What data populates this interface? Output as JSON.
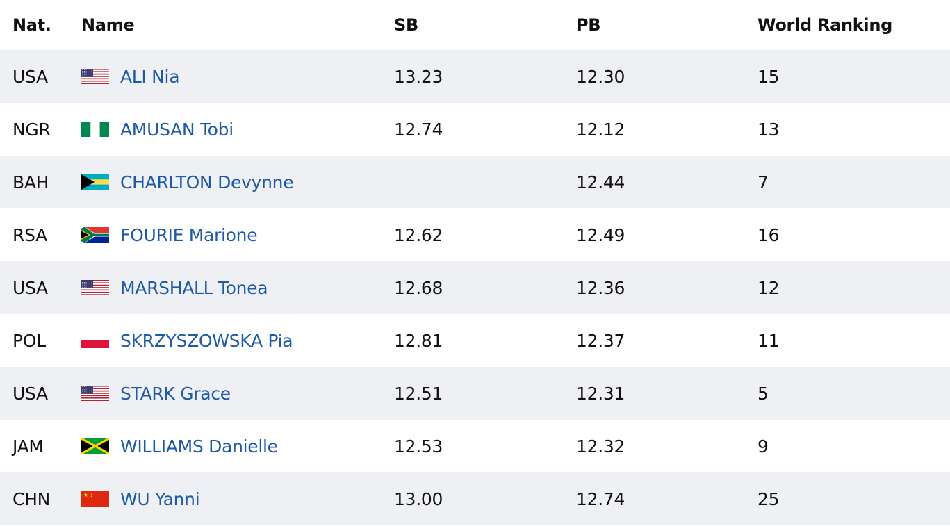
{
  "header": {
    "nat": "Nat.",
    "name": "Name",
    "sb": "SB",
    "pb": "PB",
    "rank": "World Ranking"
  },
  "rows": [
    {
      "nat": "USA",
      "flag": "usa-flag-icon",
      "name": "ALI Nia",
      "sb": "13.23",
      "pb": "12.30",
      "rank": "15"
    },
    {
      "nat": "NGR",
      "flag": "nigeria-flag-icon",
      "name": "AMUSAN Tobi",
      "sb": "12.74",
      "pb": "12.12",
      "rank": "13"
    },
    {
      "nat": "BAH",
      "flag": "bahamas-flag-icon",
      "name": "CHARLTON Devynne",
      "sb": "",
      "pb": "12.44",
      "rank": "7"
    },
    {
      "nat": "RSA",
      "flag": "south-africa-flag-icon",
      "name": "FOURIE Marione",
      "sb": "12.62",
      "pb": "12.49",
      "rank": "16"
    },
    {
      "nat": "USA",
      "flag": "usa-flag-icon",
      "name": "MARSHALL Tonea",
      "sb": "12.68",
      "pb": "12.36",
      "rank": "12"
    },
    {
      "nat": "POL",
      "flag": "poland-flag-icon",
      "name": "SKRZYSZOWSKA Pia",
      "sb": "12.81",
      "pb": "12.37",
      "rank": "11"
    },
    {
      "nat": "USA",
      "flag": "usa-flag-icon",
      "name": "STARK Grace",
      "sb": "12.51",
      "pb": "12.31",
      "rank": "5"
    },
    {
      "nat": "JAM",
      "flag": "jamaica-flag-icon",
      "name": "WILLIAMS Danielle",
      "sb": "12.53",
      "pb": "12.32",
      "rank": "9"
    },
    {
      "nat": "CHN",
      "flag": "china-flag-icon",
      "name": "WU Yanni",
      "sb": "13.00",
      "pb": "12.74",
      "rank": "25"
    }
  ],
  "colors": {
    "link": "#1f5aa6",
    "stripe": "#eff0f4",
    "text": "#111111"
  }
}
